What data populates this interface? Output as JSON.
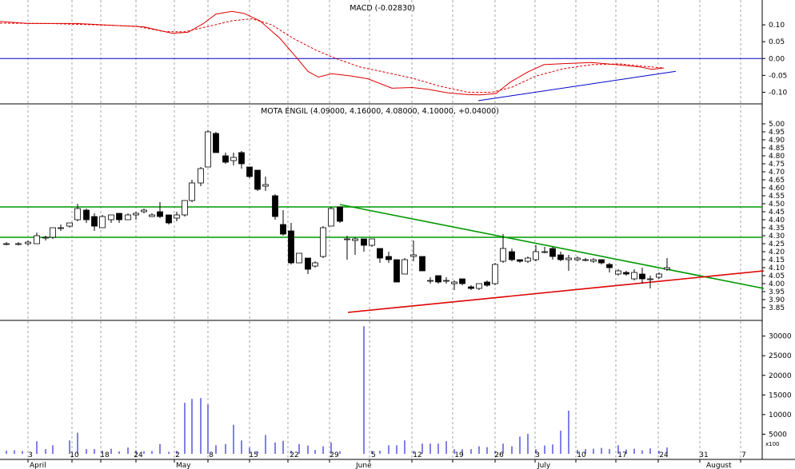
{
  "chart_data": {
    "type": "stock",
    "colors": {
      "macd": "#dd0000",
      "signal": "#dd0000",
      "zero_line": "#0000cc",
      "trend_blue": "#0000cc",
      "resistance": "#009900",
      "support": "#dd0000",
      "volume": "#0000cc",
      "grid": "#808080"
    },
    "x_axis": {
      "tick_labels": [
        "3",
        "10",
        "18",
        "24",
        "2",
        "8",
        "15",
        "22",
        "29",
        "5",
        "12",
        "19",
        "26",
        "3",
        "10",
        "17",
        "24",
        "31",
        "7"
      ],
      "month_labels": [
        "April",
        "May",
        "June",
        "July",
        "August"
      ]
    },
    "macd": {
      "title": "MACD (-0.02830)",
      "ylim": [
        -0.125,
        0.15
      ],
      "tick_labels": [
        "0.10",
        "0.05",
        "0.00",
        "-0.05",
        "-0.10"
      ],
      "tick_values": [
        0.1,
        0.05,
        0.0,
        -0.05,
        -0.1
      ],
      "macd_line": [
        [
          0,
          0.11
        ],
        [
          35,
          0.104
        ],
        [
          95,
          0.104
        ],
        [
          180,
          0.094
        ],
        [
          215,
          0.075
        ],
        [
          235,
          0.078
        ],
        [
          255,
          0.105
        ],
        [
          270,
          0.132
        ],
        [
          290,
          0.14
        ],
        [
          305,
          0.134
        ],
        [
          325,
          0.112
        ],
        [
          350,
          0.06
        ],
        [
          370,
          0.005
        ],
        [
          385,
          -0.038
        ],
        [
          398,
          -0.055
        ],
        [
          415,
          -0.045
        ],
        [
          440,
          -0.052
        ],
        [
          460,
          -0.06
        ],
        [
          490,
          -0.088
        ],
        [
          515,
          -0.086
        ],
        [
          535,
          -0.091
        ],
        [
          560,
          -0.102
        ],
        [
          585,
          -0.107
        ],
        [
          600,
          -0.108
        ],
        [
          620,
          -0.104
        ],
        [
          638,
          -0.07
        ],
        [
          660,
          -0.04
        ],
        [
          680,
          -0.018
        ],
        [
          705,
          -0.015
        ],
        [
          740,
          -0.012
        ],
        [
          770,
          -0.018
        ],
        [
          800,
          -0.025
        ],
        [
          815,
          -0.032
        ],
        [
          830,
          -0.028
        ]
      ],
      "signal_line": [
        [
          0,
          0.105
        ],
        [
          60,
          0.104
        ],
        [
          120,
          0.1
        ],
        [
          170,
          0.096
        ],
        [
          205,
          0.08
        ],
        [
          230,
          0.079
        ],
        [
          260,
          0.095
        ],
        [
          290,
          0.112
        ],
        [
          315,
          0.118
        ],
        [
          340,
          0.1
        ],
        [
          365,
          0.062
        ],
        [
          395,
          0.025
        ],
        [
          420,
          0.0
        ],
        [
          450,
          -0.025
        ],
        [
          480,
          -0.04
        ],
        [
          515,
          -0.058
        ],
        [
          550,
          -0.082
        ],
        [
          585,
          -0.1
        ],
        [
          615,
          -0.1
        ],
        [
          640,
          -0.085
        ],
        [
          670,
          -0.052
        ],
        [
          705,
          -0.03
        ],
        [
          740,
          -0.018
        ],
        [
          775,
          -0.016
        ],
        [
          805,
          -0.023
        ],
        [
          830,
          -0.028
        ]
      ],
      "trend_line": [
        [
          598,
          -0.125
        ],
        [
          845,
          -0.038
        ]
      ]
    },
    "price": {
      "title": "MOTA ENGIL (4.09000, 4.16000, 4.08000, 4.10000, +0.04000)",
      "ylim": [
        3.8,
        5.06
      ],
      "tick_labels": [
        "5.00",
        "4.95",
        "4.90",
        "4.85",
        "4.80",
        "4.75",
        "4.70",
        "4.65",
        "4.60",
        "4.55",
        "4.50",
        "4.45",
        "4.40",
        "4.35",
        "4.30",
        "4.25",
        "4.20",
        "4.15",
        "4.10",
        "4.05",
        "4.00",
        "3.95",
        "3.90",
        "3.85"
      ],
      "tick_values": [
        5.0,
        4.95,
        4.9,
        4.85,
        4.8,
        4.75,
        4.7,
        4.65,
        4.6,
        4.55,
        4.5,
        4.45,
        4.4,
        4.35,
        4.3,
        4.25,
        4.2,
        4.15,
        4.1,
        4.05,
        4.0,
        3.95,
        3.9,
        3.85
      ],
      "horizontal_levels": [
        4.48,
        4.29
      ],
      "resistance_line": [
        [
          425,
          4.495
        ],
        [
          955,
          3.97
        ]
      ],
      "support_line": [
        [
          435,
          3.82
        ],
        [
          955,
          4.08
        ]
      ],
      "candles": [
        {
          "x": 8,
          "o": 4.25,
          "h": 4.26,
          "l": 4.24,
          "c": 4.25
        },
        {
          "x": 23,
          "o": 4.25,
          "h": 4.26,
          "l": 4.24,
          "c": 4.25
        },
        {
          "x": 35,
          "o": 4.25,
          "h": 4.27,
          "l": 4.24,
          "c": 4.26
        },
        {
          "x": 46,
          "o": 4.25,
          "h": 4.32,
          "l": 4.25,
          "c": 4.3
        },
        {
          "x": 57,
          "o": 4.29,
          "h": 4.3,
          "l": 4.27,
          "c": 4.29
        },
        {
          "x": 66,
          "o": 4.29,
          "h": 4.35,
          "l": 4.28,
          "c": 4.35
        },
        {
          "x": 76,
          "o": 4.35,
          "h": 4.37,
          "l": 4.33,
          "c": 4.35
        },
        {
          "x": 87,
          "o": 4.36,
          "h": 4.38,
          "l": 4.35,
          "c": 4.38
        },
        {
          "x": 97,
          "o": 4.4,
          "h": 4.5,
          "l": 4.39,
          "c": 4.47
        },
        {
          "x": 108,
          "o": 4.46,
          "h": 4.47,
          "l": 4.38,
          "c": 4.4
        },
        {
          "x": 118,
          "o": 4.42,
          "h": 4.44,
          "l": 4.33,
          "c": 4.36
        },
        {
          "x": 128,
          "o": 4.35,
          "h": 4.43,
          "l": 4.35,
          "c": 4.42
        },
        {
          "x": 139,
          "o": 4.4,
          "h": 4.43,
          "l": 4.38,
          "c": 4.43
        },
        {
          "x": 149,
          "o": 4.44,
          "h": 4.44,
          "l": 4.38,
          "c": 4.4
        },
        {
          "x": 160,
          "o": 4.4,
          "h": 4.44,
          "l": 4.4,
          "c": 4.43
        },
        {
          "x": 170,
          "o": 4.43,
          "h": 4.45,
          "l": 4.4,
          "c": 4.44
        },
        {
          "x": 180,
          "o": 4.45,
          "h": 4.47,
          "l": 4.44,
          "c": 4.46
        },
        {
          "x": 190,
          "o": 4.42,
          "h": 4.44,
          "l": 4.42,
          "c": 4.43
        },
        {
          "x": 200,
          "o": 4.45,
          "h": 4.51,
          "l": 4.41,
          "c": 4.42
        },
        {
          "x": 211,
          "o": 4.43,
          "h": 4.43,
          "l": 4.37,
          "c": 4.38
        },
        {
          "x": 221,
          "o": 4.41,
          "h": 4.45,
          "l": 4.39,
          "c": 4.43
        },
        {
          "x": 231,
          "o": 4.43,
          "h": 4.52,
          "l": 4.42,
          "c": 4.52
        },
        {
          "x": 240,
          "o": 4.52,
          "h": 4.65,
          "l": 4.51,
          "c": 4.63
        },
        {
          "x": 251,
          "o": 4.63,
          "h": 4.73,
          "l": 4.61,
          "c": 4.72
        },
        {
          "x": 260,
          "o": 4.73,
          "h": 4.96,
          "l": 4.73,
          "c": 4.95
        },
        {
          "x": 270,
          "o": 4.94,
          "h": 4.95,
          "l": 4.82,
          "c": 4.82
        },
        {
          "x": 282,
          "o": 4.8,
          "h": 4.82,
          "l": 4.75,
          "c": 4.76
        },
        {
          "x": 292,
          "o": 4.77,
          "h": 4.82,
          "l": 4.74,
          "c": 4.79
        },
        {
          "x": 302,
          "o": 4.82,
          "h": 4.83,
          "l": 4.72,
          "c": 4.75
        },
        {
          "x": 312,
          "o": 4.73,
          "h": 4.73,
          "l": 4.66,
          "c": 4.67
        },
        {
          "x": 322,
          "o": 4.71,
          "h": 4.71,
          "l": 4.58,
          "c": 4.59
        },
        {
          "x": 332,
          "o": 4.61,
          "h": 4.67,
          "l": 4.58,
          "c": 4.62
        },
        {
          "x": 344,
          "o": 4.55,
          "h": 4.56,
          "l": 4.4,
          "c": 4.42
        },
        {
          "x": 354,
          "o": 4.37,
          "h": 4.46,
          "l": 4.3,
          "c": 4.31
        },
        {
          "x": 364,
          "o": 4.33,
          "h": 4.38,
          "l": 4.12,
          "c": 4.13
        },
        {
          "x": 374,
          "o": 4.13,
          "h": 4.19,
          "l": 4.13,
          "c": 4.19
        },
        {
          "x": 385,
          "o": 4.16,
          "h": 4.16,
          "l": 4.06,
          "c": 4.09
        },
        {
          "x": 394,
          "o": 4.11,
          "h": 4.14,
          "l": 4.1,
          "c": 4.13
        },
        {
          "x": 404,
          "o": 4.17,
          "h": 4.36,
          "l": 4.16,
          "c": 4.35
        },
        {
          "x": 414,
          "o": 4.36,
          "h": 4.48,
          "l": 4.36,
          "c": 4.47
        },
        {
          "x": 425,
          "o": 4.48,
          "h": 4.48,
          "l": 4.38,
          "c": 4.39
        },
        {
          "x": 434,
          "o": 4.28,
          "h": 4.3,
          "l": 4.15,
          "c": 4.28
        },
        {
          "x": 444,
          "o": 4.27,
          "h": 4.29,
          "l": 4.18,
          "c": 4.28
        },
        {
          "x": 455,
          "o": 4.28,
          "h": 4.28,
          "l": 4.2,
          "c": 4.24
        },
        {
          "x": 465,
          "o": 4.24,
          "h": 4.28,
          "l": 4.23,
          "c": 4.28
        },
        {
          "x": 475,
          "o": 4.22,
          "h": 4.22,
          "l": 4.13,
          "c": 4.16
        },
        {
          "x": 486,
          "o": 4.17,
          "h": 4.2,
          "l": 4.13,
          "c": 4.15
        },
        {
          "x": 496,
          "o": 4.15,
          "h": 4.15,
          "l": 4.01,
          "c": 4.01
        },
        {
          "x": 506,
          "o": 4.06,
          "h": 4.16,
          "l": 4.06,
          "c": 4.15
        },
        {
          "x": 517,
          "o": 4.17,
          "h": 4.27,
          "l": 4.14,
          "c": 4.18
        },
        {
          "x": 528,
          "o": 4.17,
          "h": 4.17,
          "l": 4.08,
          "c": 4.08
        },
        {
          "x": 538,
          "o": 4.02,
          "h": 4.04,
          "l": 4.0,
          "c": 4.02
        },
        {
          "x": 548,
          "o": 4.05,
          "h": 4.05,
          "l": 4.0,
          "c": 4.01
        },
        {
          "x": 558,
          "o": 4.02,
          "h": 4.04,
          "l": 4.0,
          "c": 4.02
        },
        {
          "x": 568,
          "o": 4.0,
          "h": 4.02,
          "l": 3.96,
          "c": 4.01
        },
        {
          "x": 578,
          "o": 4.03,
          "h": 4.03,
          "l": 3.99,
          "c": 4.0
        },
        {
          "x": 589,
          "o": 3.98,
          "h": 3.99,
          "l": 3.96,
          "c": 3.97
        },
        {
          "x": 599,
          "o": 3.97,
          "h": 4.0,
          "l": 3.96,
          "c": 4.0
        },
        {
          "x": 609,
          "o": 4.01,
          "h": 4.02,
          "l": 3.98,
          "c": 3.99
        },
        {
          "x": 619,
          "o": 4.0,
          "h": 4.13,
          "l": 3.99,
          "c": 4.12
        },
        {
          "x": 629,
          "o": 4.14,
          "h": 4.31,
          "l": 4.13,
          "c": 4.22
        },
        {
          "x": 640,
          "o": 4.2,
          "h": 4.22,
          "l": 4.14,
          "c": 4.15
        },
        {
          "x": 650,
          "o": 4.15,
          "h": 4.15,
          "l": 4.13,
          "c": 4.14
        },
        {
          "x": 660,
          "o": 4.14,
          "h": 4.17,
          "l": 4.13,
          "c": 4.16
        },
        {
          "x": 670,
          "o": 4.15,
          "h": 4.24,
          "l": 4.14,
          "c": 4.2
        },
        {
          "x": 681,
          "o": 4.2,
          "h": 4.23,
          "l": 4.19,
          "c": 4.2
        },
        {
          "x": 691,
          "o": 4.22,
          "h": 4.23,
          "l": 4.15,
          "c": 4.17
        },
        {
          "x": 701,
          "o": 4.18,
          "h": 4.2,
          "l": 4.14,
          "c": 4.15
        },
        {
          "x": 711,
          "o": 4.15,
          "h": 4.18,
          "l": 4.08,
          "c": 4.16
        },
        {
          "x": 722,
          "o": 4.15,
          "h": 4.17,
          "l": 4.14,
          "c": 4.16
        },
        {
          "x": 732,
          "o": 4.15,
          "h": 4.16,
          "l": 4.14,
          "c": 4.15
        },
        {
          "x": 742,
          "o": 4.14,
          "h": 4.16,
          "l": 4.13,
          "c": 4.15
        },
        {
          "x": 752,
          "o": 4.15,
          "h": 4.15,
          "l": 4.12,
          "c": 4.13
        },
        {
          "x": 762,
          "o": 4.12,
          "h": 4.13,
          "l": 4.07,
          "c": 4.1
        },
        {
          "x": 773,
          "o": 4.06,
          "h": 4.09,
          "l": 4.05,
          "c": 4.08
        },
        {
          "x": 783,
          "o": 4.07,
          "h": 4.08,
          "l": 4.05,
          "c": 4.06
        },
        {
          "x": 793,
          "o": 4.03,
          "h": 4.09,
          "l": 4.02,
          "c": 4.07
        },
        {
          "x": 803,
          "o": 4.06,
          "h": 4.1,
          "l": 4.0,
          "c": 4.03
        },
        {
          "x": 813,
          "o": 4.03,
          "h": 4.05,
          "l": 3.97,
          "c": 4.03
        },
        {
          "x": 824,
          "o": 4.04,
          "h": 4.07,
          "l": 4.03,
          "c": 4.06
        },
        {
          "x": 834,
          "o": 4.09,
          "h": 4.16,
          "l": 4.08,
          "c": 4.1
        }
      ]
    },
    "volume": {
      "ylim": [
        0,
        34000
      ],
      "unit_label": "x100",
      "tick_labels": [
        "30000",
        "25000",
        "20000",
        "15000",
        "10000",
        "5000"
      ],
      "tick_values": [
        30000,
        25000,
        20000,
        15000,
        10000,
        5000
      ],
      "bars": [
        [
          8,
          800
        ],
        [
          18,
          900
        ],
        [
          28,
          700
        ],
        [
          46,
          3200
        ],
        [
          57,
          1200
        ],
        [
          66,
          2200
        ],
        [
          87,
          3400
        ],
        [
          97,
          5400
        ],
        [
          108,
          1200
        ],
        [
          118,
          1200
        ],
        [
          128,
          800
        ],
        [
          139,
          1300
        ],
        [
          149,
          600
        ],
        [
          160,
          1600
        ],
        [
          170,
          900
        ],
        [
          180,
          600
        ],
        [
          190,
          700
        ],
        [
          200,
          2500
        ],
        [
          211,
          500
        ],
        [
          221,
          700
        ],
        [
          231,
          13000
        ],
        [
          240,
          14000
        ],
        [
          251,
          14200
        ],
        [
          260,
          12600
        ],
        [
          270,
          2200
        ],
        [
          282,
          2500
        ],
        [
          292,
          7400
        ],
        [
          302,
          3400
        ],
        [
          312,
          1600
        ],
        [
          322,
          600
        ],
        [
          332,
          4800
        ],
        [
          344,
          2900
        ],
        [
          354,
          3300
        ],
        [
          364,
          800
        ],
        [
          374,
          2500
        ],
        [
          385,
          2100
        ],
        [
          394,
          1000
        ],
        [
          404,
          1900
        ],
        [
          414,
          2900
        ],
        [
          425,
          600
        ],
        [
          455,
          32500
        ],
        [
          465,
          800
        ],
        [
          475,
          800
        ],
        [
          486,
          2200
        ],
        [
          496,
          2200
        ],
        [
          506,
          3400
        ],
        [
          517,
          700
        ],
        [
          528,
          2600
        ],
        [
          538,
          2600
        ],
        [
          548,
          2600
        ],
        [
          558,
          3200
        ],
        [
          568,
          1200
        ],
        [
          578,
          1200
        ],
        [
          589,
          1200
        ],
        [
          599,
          1900
        ],
        [
          609,
          1700
        ],
        [
          619,
          700
        ],
        [
          629,
          2600
        ],
        [
          640,
          1900
        ],
        [
          650,
          4400
        ],
        [
          660,
          5100
        ],
        [
          670,
          1200
        ],
        [
          681,
          2100
        ],
        [
          691,
          2400
        ],
        [
          701,
          5900
        ],
        [
          711,
          11000
        ],
        [
          722,
          1000
        ],
        [
          732,
          1200
        ],
        [
          742,
          1300
        ],
        [
          752,
          1500
        ],
        [
          762,
          1200
        ],
        [
          773,
          2200
        ],
        [
          783,
          1100
        ],
        [
          793,
          1300
        ],
        [
          803,
          900
        ],
        [
          813,
          1400
        ],
        [
          824,
          700
        ],
        [
          834,
          1600
        ]
      ]
    }
  }
}
